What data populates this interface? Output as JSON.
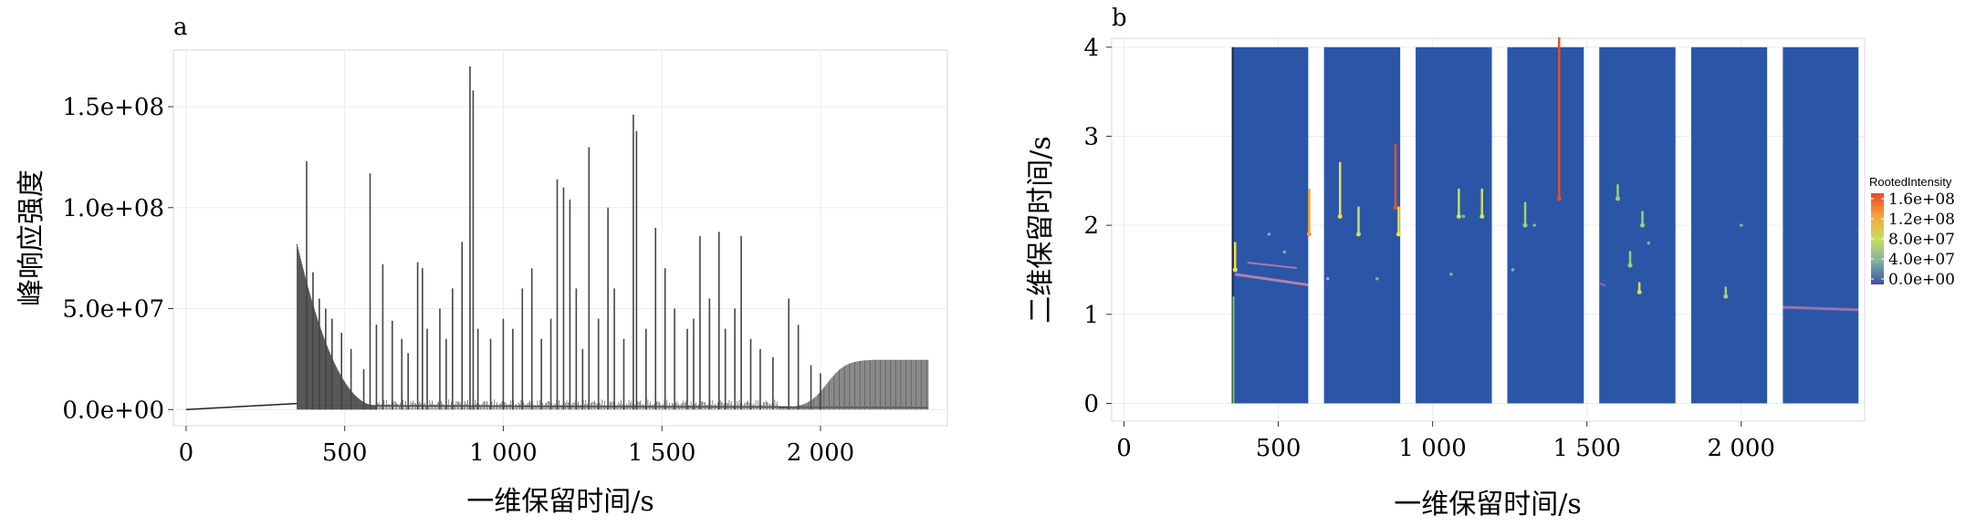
{
  "chart_data": [
    {
      "panel": "a",
      "type": "line",
      "xlabel": "一维保留时间/s",
      "ylabel": "峰响应强度",
      "xlim": [
        -40,
        2400
      ],
      "ylim": [
        -8000000,
        178000000
      ],
      "x_ticks": [
        {
          "value": 0,
          "label": "0"
        },
        {
          "value": 500,
          "label": "500"
        },
        {
          "value": 1000,
          "label": "1 000"
        },
        {
          "value": 1500,
          "label": "1 500"
        },
        {
          "value": 2000,
          "label": "2 000"
        }
      ],
      "y_ticks": [
        {
          "value": 0,
          "label": "0.0e+00"
        },
        {
          "value": 50000000,
          "label": "5.0e+07"
        },
        {
          "value": 100000000,
          "label": "1.0e+08"
        },
        {
          "value": 150000000,
          "label": "1.5e+08"
        }
      ],
      "grid": true,
      "background_decay": {
        "start": 350,
        "end": 600,
        "peak": 80000000
      },
      "background_rise": {
        "start": 1870,
        "end": 2340,
        "plateau": 24000000
      },
      "peaks": [
        [
          380,
          123000000
        ],
        [
          400,
          68000000
        ],
        [
          420,
          55000000
        ],
        [
          440,
          50000000
        ],
        [
          460,
          45000000
        ],
        [
          490,
          38000000
        ],
        [
          520,
          30000000
        ],
        [
          560,
          20000000
        ],
        [
          580,
          117000000
        ],
        [
          600,
          42000000
        ],
        [
          620,
          72000000
        ],
        [
          650,
          44000000
        ],
        [
          680,
          35000000
        ],
        [
          700,
          28000000
        ],
        [
          730,
          73000000
        ],
        [
          745,
          70000000
        ],
        [
          760,
          40000000
        ],
        [
          800,
          50000000
        ],
        [
          820,
          35000000
        ],
        [
          840,
          60000000
        ],
        [
          870,
          83000000
        ],
        [
          895,
          170000000
        ],
        [
          905,
          158000000
        ],
        [
          920,
          40000000
        ],
        [
          960,
          35000000
        ],
        [
          1000,
          45000000
        ],
        [
          1030,
          40000000
        ],
        [
          1060,
          60000000
        ],
        [
          1090,
          70000000
        ],
        [
          1120,
          35000000
        ],
        [
          1150,
          45000000
        ],
        [
          1170,
          114000000
        ],
        [
          1190,
          110000000
        ],
        [
          1210,
          104000000
        ],
        [
          1230,
          60000000
        ],
        [
          1250,
          30000000
        ],
        [
          1270,
          130000000
        ],
        [
          1300,
          45000000
        ],
        [
          1330,
          100000000
        ],
        [
          1350,
          60000000
        ],
        [
          1380,
          35000000
        ],
        [
          1410,
          146000000
        ],
        [
          1420,
          138000000
        ],
        [
          1450,
          40000000
        ],
        [
          1480,
          90000000
        ],
        [
          1510,
          70000000
        ],
        [
          1540,
          50000000
        ],
        [
          1580,
          40000000
        ],
        [
          1600,
          45000000
        ],
        [
          1620,
          86000000
        ],
        [
          1650,
          55000000
        ],
        [
          1680,
          88000000
        ],
        [
          1700,
          40000000
        ],
        [
          1730,
          50000000
        ],
        [
          1750,
          86000000
        ],
        [
          1780,
          35000000
        ],
        [
          1810,
          30000000
        ],
        [
          1850,
          26000000
        ],
        [
          1900,
          55000000
        ],
        [
          1930,
          42000000
        ],
        [
          1970,
          22000000
        ],
        [
          2000,
          18000000
        ]
      ]
    },
    {
      "panel": "b",
      "type": "heatmap",
      "xlabel": "一维保留时间/s",
      "ylabel": "二维保留时间/s",
      "xlim": [
        -40,
        2400
      ],
      "ylim": [
        -0.2,
        4.1
      ],
      "x_ticks": [
        {
          "value": 0,
          "label": "0"
        },
        {
          "value": 500,
          "label": "500"
        },
        {
          "value": 1000,
          "label": "1 000"
        },
        {
          "value": 1500,
          "label": "1 500"
        },
        {
          "value": 2000,
          "label": "2 000"
        }
      ],
      "y_ticks": [
        {
          "value": 0,
          "label": "0"
        },
        {
          "value": 1,
          "label": "1"
        },
        {
          "value": 2,
          "label": "2"
        },
        {
          "value": 3,
          "label": "3"
        },
        {
          "value": 4,
          "label": "4"
        }
      ],
      "grid": true,
      "blocks": [
        [
          352,
          597
        ],
        [
          648,
          895
        ],
        [
          945,
          1192
        ],
        [
          1242,
          1490
        ],
        [
          1540,
          1787
        ],
        [
          1838,
          2084
        ],
        [
          2135,
          2380
        ]
      ],
      "background_color": "#2b56a8",
      "legend": {
        "title": "RootedIntensity",
        "placement": "right",
        "labels": [
          "1.6e+08",
          "1.2e+08",
          "8.0e+07",
          "4.0e+07",
          "0.0e+00"
        ],
        "colors": [
          "#e74a24",
          "#f5a43a",
          "#c8e060",
          "#7fb0a0",
          "#3a4fa8"
        ]
      },
      "hotspots": [
        {
          "x": 360,
          "y": 1.5,
          "len": 0.3,
          "color": "#f0e040"
        },
        {
          "x": 600,
          "y": 1.9,
          "len": 0.5,
          "color": "#f0a030"
        },
        {
          "x": 700,
          "y": 2.1,
          "len": 0.6,
          "color": "#e8e050"
        },
        {
          "x": 760,
          "y": 1.9,
          "len": 0.3,
          "color": "#c8e060"
        },
        {
          "x": 880,
          "y": 2.2,
          "len": 0.7,
          "color": "#e05030"
        },
        {
          "x": 890,
          "y": 1.9,
          "len": 0.3,
          "color": "#f0e040"
        },
        {
          "x": 1085,
          "y": 2.1,
          "len": 0.3,
          "color": "#c8e060"
        },
        {
          "x": 1160,
          "y": 2.1,
          "len": 0.3,
          "color": "#c8e060"
        },
        {
          "x": 1300,
          "y": 2.0,
          "len": 0.25,
          "color": "#9fd070"
        },
        {
          "x": 1410,
          "y": 2.3,
          "len": 1.8,
          "color": "#e05030"
        },
        {
          "x": 1600,
          "y": 2.3,
          "len": 0.15,
          "color": "#9fd070"
        },
        {
          "x": 1640,
          "y": 1.55,
          "len": 0.15,
          "color": "#9fd070"
        },
        {
          "x": 1670,
          "y": 1.25,
          "len": 0.1,
          "color": "#c8e060"
        },
        {
          "x": 1680,
          "y": 2.0,
          "len": 0.15,
          "color": "#9fd070"
        },
        {
          "x": 1950,
          "y": 1.2,
          "len": 0.1,
          "color": "#9fd070"
        }
      ]
    }
  ]
}
